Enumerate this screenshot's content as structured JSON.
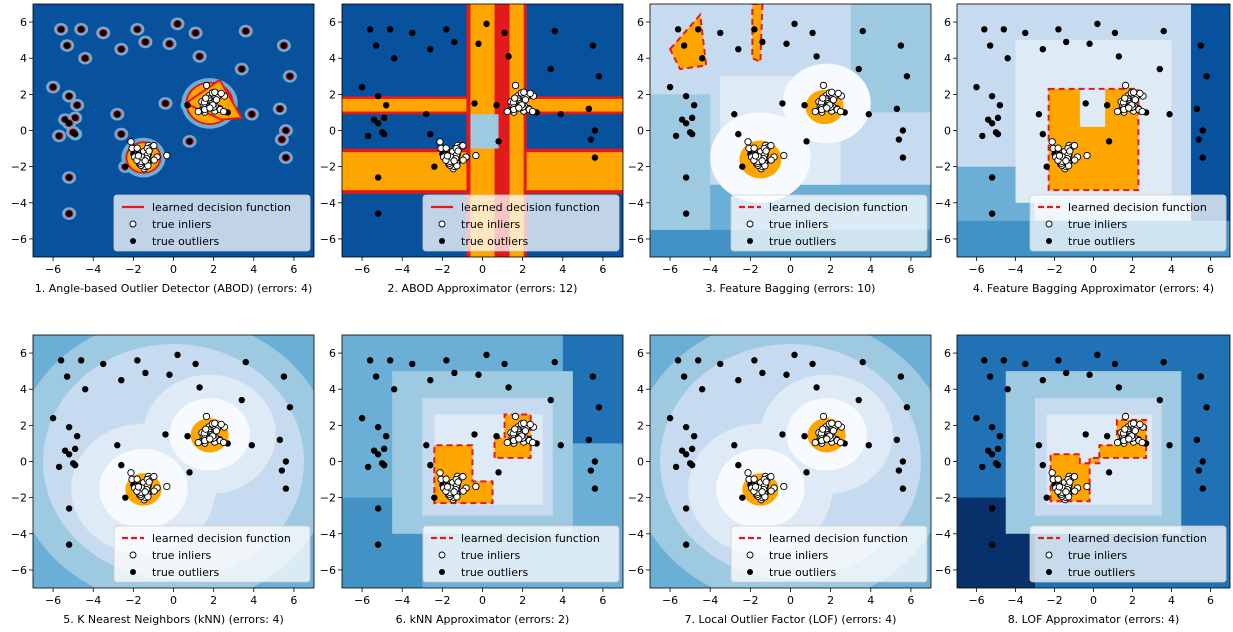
{
  "chart_data": [
    {
      "type": "scatter",
      "title": "1. Angle-based Outlier Detector (ABOD) (errors: 4)",
      "xlim": [
        -7,
        7
      ],
      "ylim": [
        -7,
        7
      ],
      "xticks": [
        -6,
        -4,
        -2,
        0,
        2,
        4,
        6
      ],
      "yticks": [
        -6,
        -4,
        -2,
        0,
        2,
        4,
        6
      ],
      "legend": {
        "entries": [
          "learned decision function",
          "true inliers",
          "true outliers"
        ],
        "line_style": "solid",
        "placement": "lower-right"
      },
      "decision_style": "abod",
      "inlier_regions": [
        [
          -1.5,
          -1.5
        ],
        [
          1.8,
          1.5
        ]
      ]
    },
    {
      "type": "scatter",
      "title": "2. ABOD Approximator (errors: 12)",
      "xlim": [
        -7,
        7
      ],
      "ylim": [
        -7,
        7
      ],
      "xticks": [
        -6,
        -4,
        -2,
        0,
        2,
        4,
        6
      ],
      "yticks": [
        -6,
        -4,
        -2,
        0,
        2,
        4,
        6
      ],
      "legend": {
        "entries": [
          "learned decision function",
          "true inliers",
          "true outliers"
        ],
        "line_style": "solid",
        "placement": "lower-right"
      },
      "decision_style": "cross",
      "inlier_regions": [
        [
          -1.5,
          -1.5
        ],
        [
          1.8,
          1.5
        ]
      ]
    },
    {
      "type": "scatter",
      "title": "3. Feature Bagging (errors: 10)",
      "xlim": [
        -7,
        7
      ],
      "ylim": [
        -7,
        7
      ],
      "xticks": [
        -6,
        -4,
        -2,
        0,
        2,
        4,
        6
      ],
      "yticks": [
        -6,
        -4,
        -2,
        0,
        2,
        4,
        6
      ],
      "legend": {
        "entries": [
          "learned decision function",
          "true inliers",
          "true outliers"
        ],
        "line_style": "dashed",
        "placement": "lower-right"
      },
      "decision_style": "blobs",
      "inlier_regions": [
        [
          -1.5,
          -1.5
        ],
        [
          1.8,
          1.5
        ]
      ]
    },
    {
      "type": "scatter",
      "title": "4. Feature Bagging Approximator (errors: 4)",
      "xlim": [
        -7,
        7
      ],
      "ylim": [
        -7,
        7
      ],
      "xticks": [
        -6,
        -4,
        -2,
        0,
        2,
        4,
        6
      ],
      "yticks": [
        -6,
        -4,
        -2,
        0,
        2,
        4,
        6
      ],
      "legend": {
        "entries": [
          "learned decision function",
          "true inliers",
          "true outliers"
        ],
        "line_style": "dashed",
        "placement": "lower-right"
      },
      "decision_style": "big-block",
      "inlier_regions": [
        [
          -1.5,
          -1.5
        ],
        [
          1.8,
          1.5
        ]
      ]
    },
    {
      "type": "scatter",
      "title": "5. K Nearest Neighbors (kNN) (errors: 4)",
      "xlim": [
        -7,
        7
      ],
      "ylim": [
        -7,
        7
      ],
      "xticks": [
        -6,
        -4,
        -2,
        0,
        2,
        4,
        6
      ],
      "yticks": [
        -6,
        -4,
        -2,
        0,
        2,
        4,
        6
      ],
      "legend": {
        "entries": [
          "learned decision function",
          "true inliers",
          "true outliers"
        ],
        "line_style": "dashed",
        "placement": "lower-right"
      },
      "decision_style": "smooth",
      "inlier_regions": [
        [
          -1.5,
          -1.5
        ],
        [
          1.8,
          1.5
        ]
      ]
    },
    {
      "type": "scatter",
      "title": "6. kNN Approximator (errors: 2)",
      "xlim": [
        -7,
        7
      ],
      "ylim": [
        -7,
        7
      ],
      "xticks": [
        -6,
        -4,
        -2,
        0,
        2,
        4,
        6
      ],
      "yticks": [
        -6,
        -4,
        -2,
        0,
        2,
        4,
        6
      ],
      "legend": {
        "entries": [
          "learned decision function",
          "true inliers",
          "true outliers"
        ],
        "line_style": "dashed",
        "placement": "lower-right"
      },
      "decision_style": "blocks",
      "inlier_regions": [
        [
          -1.5,
          -1.5
        ],
        [
          1.8,
          1.5
        ]
      ]
    },
    {
      "type": "scatter",
      "title": "7. Local Outlier Factor (LOF) (errors: 4)",
      "xlim": [
        -7,
        7
      ],
      "ylim": [
        -7,
        7
      ],
      "xticks": [
        -6,
        -4,
        -2,
        0,
        2,
        4,
        6
      ],
      "yticks": [
        -6,
        -4,
        -2,
        0,
        2,
        4,
        6
      ],
      "legend": {
        "entries": [
          "learned decision function",
          "true inliers",
          "true outliers"
        ],
        "line_style": "dashed",
        "placement": "lower-right"
      },
      "decision_style": "smooth",
      "inlier_regions": [
        [
          -1.5,
          -1.5
        ],
        [
          1.8,
          1.5
        ]
      ]
    },
    {
      "type": "scatter",
      "title": "8. LOF Approximator (errors: 4)",
      "xlim": [
        -7,
        7
      ],
      "ylim": [
        -7,
        7
      ],
      "xticks": [
        -6,
        -4,
        -2,
        0,
        2,
        4,
        6
      ],
      "yticks": [
        -6,
        -4,
        -2,
        0,
        2,
        4,
        6
      ],
      "legend": {
        "entries": [
          "learned decision function",
          "true inliers",
          "true outliers"
        ],
        "line_style": "dashed",
        "placement": "lower-right"
      },
      "decision_style": "blocks-lof",
      "inlier_regions": [
        [
          -1.5,
          -1.5
        ],
        [
          1.8,
          1.5
        ]
      ]
    }
  ],
  "outliers": [
    [
      -5.6,
      5.6
    ],
    [
      -5.3,
      4.7
    ],
    [
      -4.6,
      5.6
    ],
    [
      -4.4,
      4.0
    ],
    [
      -3.5,
      5.4
    ],
    [
      -2.6,
      4.5
    ],
    [
      -1.8,
      5.6
    ],
    [
      -1.4,
      4.9
    ],
    [
      0.2,
      5.9
    ],
    [
      1.3,
      4.1
    ],
    [
      1.1,
      5.4
    ],
    [
      -0.2,
      4.8
    ],
    [
      3.4,
      3.4
    ],
    [
      3.6,
      5.5
    ],
    [
      5.5,
      4.7
    ],
    [
      5.8,
      3.0
    ],
    [
      -6.0,
      2.4
    ],
    [
      -5.2,
      1.9
    ],
    [
      -4.8,
      1.4
    ],
    [
      -5.7,
      -0.3
    ],
    [
      -5.4,
      0.6
    ],
    [
      -4.9,
      0.7
    ],
    [
      -5.2,
      0.4
    ],
    [
      -4.9,
      -0.2
    ],
    [
      -5.0,
      -0.1
    ],
    [
      -2.8,
      0.9
    ],
    [
      -2.6,
      -0.2
    ],
    [
      -0.4,
      1.5
    ],
    [
      0.7,
      1.4
    ],
    [
      3.9,
      0.9
    ],
    [
      5.3,
      1.2
    ],
    [
      5.6,
      0.0
    ],
    [
      5.6,
      -1.5
    ],
    [
      5.4,
      -0.5
    ],
    [
      0.8,
      -0.6
    ],
    [
      -5.2,
      -2.6
    ],
    [
      -5.2,
      -4.6
    ],
    [
      -2.4,
      -2.0
    ],
    [
      -2.0,
      -1.3
    ],
    [
      2.7,
      1.0
    ]
  ],
  "colors": {
    "darkest": "#08306b",
    "dark": "#08519c",
    "mid": "#2171b5",
    "mid2": "#4292c6",
    "light": "#6baed6",
    "lighter": "#9ecae1",
    "pale": "#c6dbef",
    "palest": "#deebf7",
    "white": "#f7fbff",
    "inlier_fill": "#ffa500",
    "boundary": "#e31a1c"
  }
}
